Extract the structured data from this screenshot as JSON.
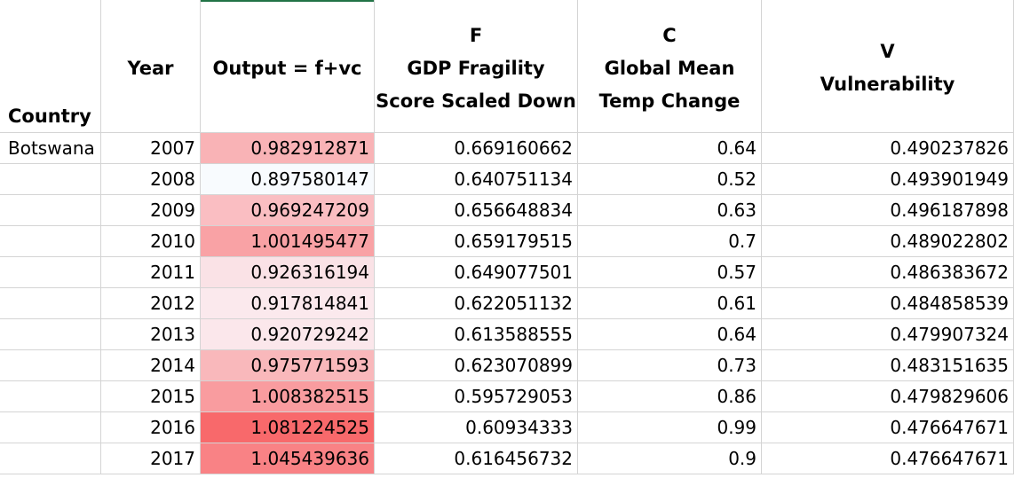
{
  "headers": {
    "country": "Country",
    "year": "Year",
    "output": "Output = f+vc",
    "f_letter": "F",
    "f_line1": "GDP Fragility",
    "f_line2": "Score Scaled Down",
    "c_letter": "C",
    "c_line1": "Global Mean",
    "c_line2": "Temp Change",
    "v_letter": "V",
    "v_line1": "Vulnerability"
  },
  "rows": [
    {
      "country": "Botswana",
      "year": "2007",
      "output": "0.982912871",
      "f": "0.669160662",
      "c": "0.64",
      "v": "0.490237826",
      "output_color": "#f9b3b6"
    },
    {
      "country": "",
      "year": "2008",
      "output": "0.897580147",
      "f": "0.640751134",
      "c": "0.52",
      "v": "0.493901949",
      "output_color": "#f8fbfe"
    },
    {
      "country": "",
      "year": "2009",
      "output": "0.969247209",
      "f": "0.656648834",
      "c": "0.63",
      "v": "0.496187898",
      "output_color": "#fabec2"
    },
    {
      "country": "",
      "year": "2010",
      "output": "1.001495477",
      "f": "0.659179515",
      "c": "0.7",
      "v": "0.489022802",
      "output_color": "#f9a2a5"
    },
    {
      "country": "",
      "year": "2011",
      "output": "0.926316194",
      "f": "0.649077501",
      "c": "0.57",
      "v": "0.486383672",
      "output_color": "#fae2e6"
    },
    {
      "country": "",
      "year": "2012",
      "output": "0.917814841",
      "f": "0.622051132",
      "c": "0.61",
      "v": "0.484858539",
      "output_color": "#fbe9ed"
    },
    {
      "country": "",
      "year": "2013",
      "output": "0.920729242",
      "f": "0.613588555",
      "c": "0.64",
      "v": "0.479907324",
      "output_color": "#fbe7eb"
    },
    {
      "country": "",
      "year": "2014",
      "output": "0.975771593",
      "f": "0.623070899",
      "c": "0.73",
      "v": "0.483151635",
      "output_color": "#f9b8bb"
    },
    {
      "country": "",
      "year": "2015",
      "output": "1.008382515",
      "f": "0.595729053",
      "c": "0.86",
      "v": "0.479829606",
      "output_color": "#f99c9f"
    },
    {
      "country": "",
      "year": "2016",
      "output": "1.081224525",
      "f": "0.60934333",
      "c": "0.99",
      "v": "0.476647671",
      "output_color": "#f8696b"
    },
    {
      "country": "",
      "year": "2017",
      "output": "1.045439636",
      "f": "0.616456732",
      "c": "0.9",
      "v": "0.476647671",
      "output_color": "#f98285"
    }
  ]
}
